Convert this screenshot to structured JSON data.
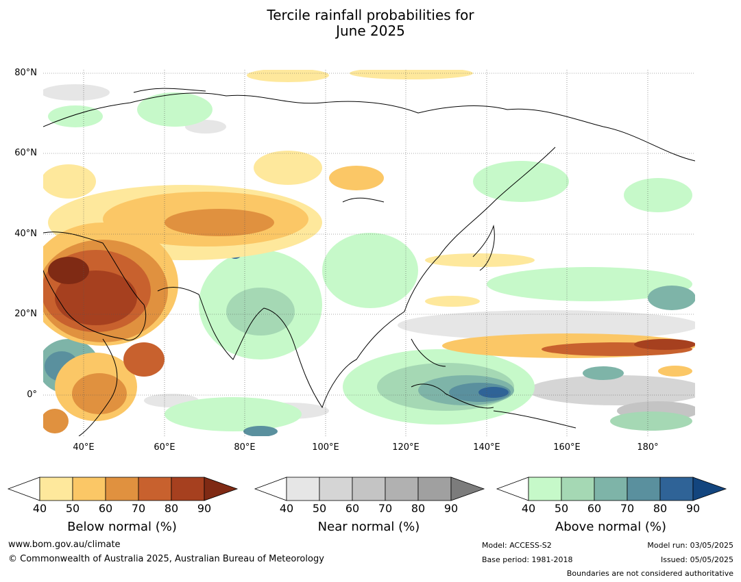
{
  "title_line1": "Tercile rainfall probabilities for",
  "title_line2": "June 2025",
  "lat_labels": [
    "80°N",
    "60°N",
    "40°N",
    "20°N",
    "0°"
  ],
  "lon_labels": [
    "40°E",
    "60°E",
    "80°E",
    "100°E",
    "120°E",
    "140°E",
    "160°E",
    "180°"
  ],
  "colorbars": [
    {
      "label": "Below normal (%)",
      "ticks": [
        "40",
        "50",
        "60",
        "70",
        "80",
        "90"
      ],
      "colors": [
        "#ffffff",
        "#fee89c",
        "#fbc766",
        "#e0913f",
        "#c8612e",
        "#a6401f",
        "#7f2a14"
      ]
    },
    {
      "label": "Near normal (%)",
      "ticks": [
        "40",
        "50",
        "60",
        "70",
        "80",
        "90"
      ],
      "colors": [
        "#ffffff",
        "#e6e6e6",
        "#d5d5d5",
        "#c4c4c4",
        "#b1b1b1",
        "#a0a0a0",
        "#7c7c7c"
      ]
    },
    {
      "label": "Above normal (%)",
      "ticks": [
        "40",
        "50",
        "60",
        "70",
        "80",
        "90"
      ],
      "colors": [
        "#ffffff",
        "#c6f9c9",
        "#a5d8b4",
        "#7eb4a8",
        "#5a909e",
        "#2f6397",
        "#13457e"
      ]
    }
  ],
  "footer": {
    "website": "www.bom.gov.au/climate",
    "copyright": "© Commonwealth of Australia 2025, Australian Bureau of Meteorology",
    "model": "Model: ACCESS-S2",
    "base_period": "Base period: 1981-2018",
    "model_run": "Model run: 03/05/2025",
    "issued": "Issued: 05/05/2025",
    "disclaimer": "Boundaries are not considered authoritative"
  }
}
